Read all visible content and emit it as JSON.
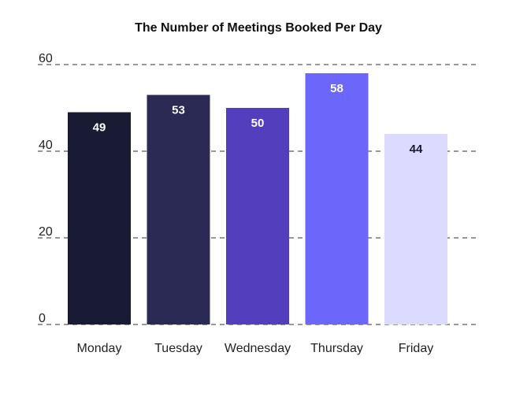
{
  "chart_data": {
    "type": "bar",
    "title": "The Number of Meetings Booked Per Day",
    "xlabel": "",
    "ylabel": "",
    "categories": [
      "Monday",
      "Tuesday",
      "Wednesday",
      "Thursday",
      "Friday"
    ],
    "values": [
      49,
      53,
      50,
      58,
      44
    ],
    "value_labels": [
      "49",
      "53",
      "50",
      "58",
      "44"
    ],
    "ylim": [
      0,
      60
    ],
    "yticks": [
      0,
      20,
      40,
      60
    ],
    "ytick_labels": [
      "0",
      "20",
      "40",
      "60"
    ],
    "grid": "dashed horizontal",
    "legend": "none",
    "colors": {
      "bars": [
        "#191a33",
        "#2b2a55",
        "#533ebd",
        "#6c66fb",
        "#dcdaff"
      ],
      "value_labels": [
        "#ffffff",
        "#ffffff",
        "#ffffff",
        "#ffffff",
        "#191a33"
      ]
    }
  }
}
